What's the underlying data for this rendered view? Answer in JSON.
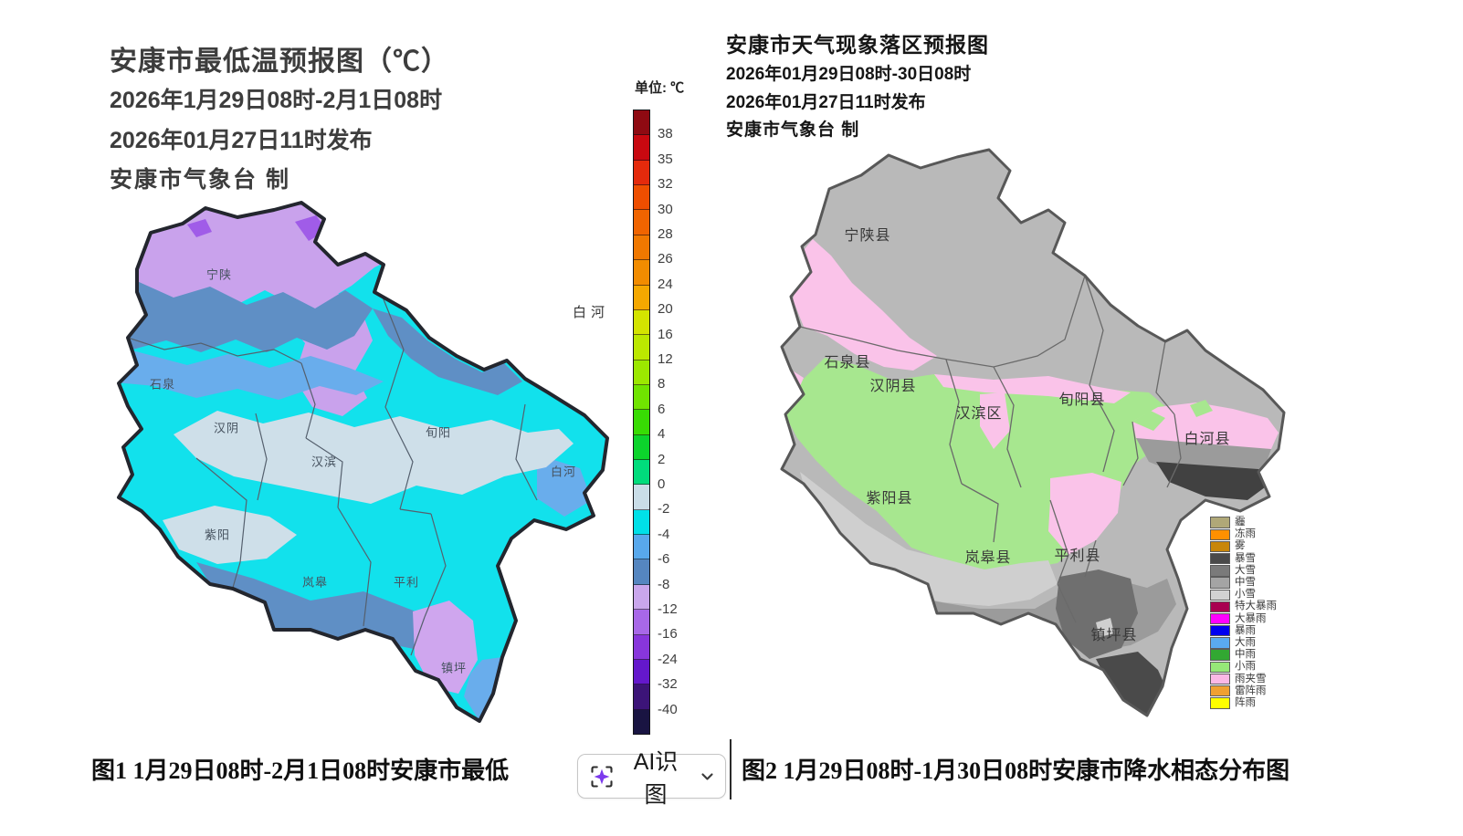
{
  "left_panel": {
    "title": "安康市最低温预报图（℃）",
    "valid_time": "2026年1月29日08时-2月1日08时",
    "issue_time": "2026年01月27日11时发布",
    "producer": "安康市气象台 制",
    "floating_label": "白河",
    "map_labels": [
      "宁陕",
      "石泉",
      "汉阴",
      "汉滨",
      "旬阳",
      "白河",
      "紫阳",
      "岚皋",
      "平利",
      "镇坪"
    ],
    "colorbar": {
      "unit_label": "单位: ℃",
      "tick_labels": [
        "38",
        "35",
        "32",
        "30",
        "28",
        "26",
        "24",
        "20",
        "16",
        "12",
        "8",
        "6",
        "4",
        "2",
        "0",
        "-2",
        "-4",
        "-6",
        "-8",
        "-12",
        "-16",
        "-24",
        "-32",
        "-40"
      ],
      "segment_colors": [
        "#8F0A12",
        "#C80810",
        "#E42A0C",
        "#EE4E00",
        "#F06400",
        "#F07800",
        "#F28C00",
        "#F5A800",
        "#D4E400",
        "#BCE800",
        "#9CE800",
        "#70E400",
        "#38DC04",
        "#0CD42C",
        "#00DC7C",
        "#C9DDE8",
        "#00E0E8",
        "#58A8EC",
        "#5586C0",
        "#C9A6EC",
        "#A868E8",
        "#8836DC",
        "#6418CC",
        "#3C1478",
        "#191442"
      ]
    }
  },
  "right_panel": {
    "title": "安康市天气现象落区预报图",
    "valid_time": "2026年01月29日08时-30日08时",
    "issue_time": "2026年01月27日11时发布",
    "producer": "安康市气象台 制",
    "map_labels": [
      "宁陕县",
      "石泉县",
      "汉阴县",
      "汉滨区",
      "旬阳县",
      "白河县",
      "紫阳县",
      "岚皋县",
      "平利县",
      "镇坪县"
    ],
    "legend": [
      {
        "label": "霾",
        "color": "#B0A878"
      },
      {
        "label": "冻雨",
        "color": "#FF9000"
      },
      {
        "label": "雾",
        "color": "#C8860A"
      },
      {
        "label": "暴雪",
        "color": "#4A4A4A"
      },
      {
        "label": "大雪",
        "color": "#7A7A7A"
      },
      {
        "label": "中雪",
        "color": "#A4A4A4"
      },
      {
        "label": "小雪",
        "color": "#D2D2D2"
      },
      {
        "label": "特大暴雨",
        "color": "#A80050"
      },
      {
        "label": "大暴雨",
        "color": "#FF00FF"
      },
      {
        "label": "暴雨",
        "color": "#0000F0"
      },
      {
        "label": "大雨",
        "color": "#5AAAF0"
      },
      {
        "label": "中雨",
        "color": "#32A832"
      },
      {
        "label": "小雨",
        "color": "#96E878"
      },
      {
        "label": "雨夹雪",
        "color": "#FBB8E6"
      },
      {
        "label": "雷阵雨",
        "color": "#F0A032"
      },
      {
        "label": "阵雨",
        "color": "#FFFF00"
      }
    ]
  },
  "captions": {
    "left": "图1  1月29日08时-2月1日08时安康市最低",
    "right": "图2 1月29日08时-1月30日08时安康市降水相态分布图"
  },
  "ai_button": {
    "label": "AI识图"
  }
}
